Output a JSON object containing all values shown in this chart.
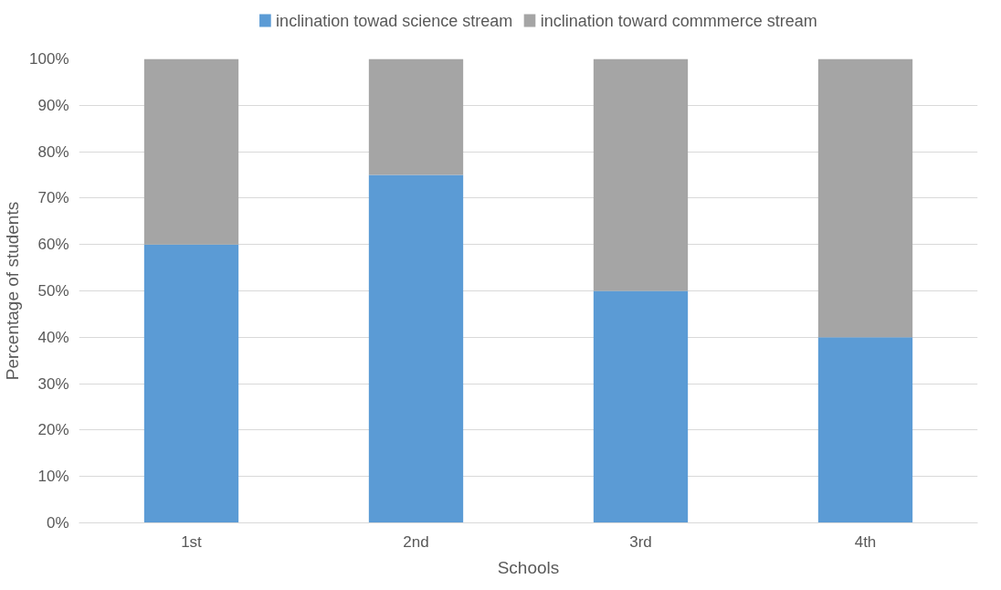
{
  "chart_data": {
    "type": "bar",
    "stacked": true,
    "categories": [
      "1st",
      "2nd",
      "3rd",
      "4th"
    ],
    "series": [
      {
        "name": "inclination towad science stream",
        "color": "#5b9bd5",
        "values": [
          60,
          75,
          50,
          40
        ]
      },
      {
        "name": "inclination toward commmerce stream",
        "color": "#a5a5a5",
        "values": [
          40,
          25,
          50,
          60
        ]
      }
    ],
    "xlabel": "Schools",
    "ylabel": "Percentage of students",
    "ylim": [
      0,
      100
    ],
    "yticks": [
      {
        "value": 0,
        "label": "0%"
      },
      {
        "value": 10,
        "label": "10%"
      },
      {
        "value": 20,
        "label": "20%"
      },
      {
        "value": 30,
        "label": "30%"
      },
      {
        "value": 40,
        "label": "40%"
      },
      {
        "value": 50,
        "label": "50%"
      },
      {
        "value": 60,
        "label": "60%"
      },
      {
        "value": 70,
        "label": "70%"
      },
      {
        "value": 80,
        "label": "80%"
      },
      {
        "value": 90,
        "label": "90%"
      },
      {
        "value": 100,
        "label": "100%"
      }
    ],
    "grid": "y",
    "legend": "top"
  }
}
